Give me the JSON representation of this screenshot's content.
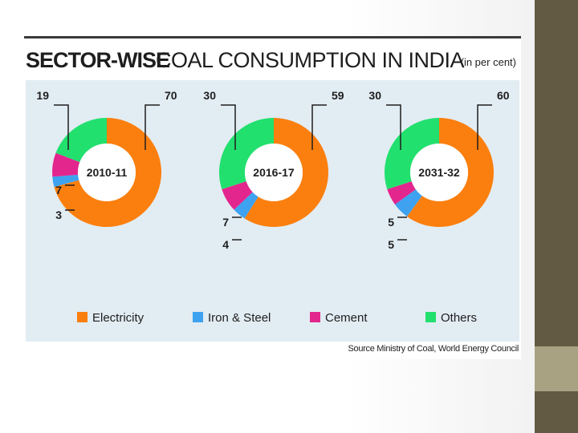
{
  "slide": {
    "colors": {
      "sidebar": "#625a43",
      "sidebar_accent": "#a8a283"
    }
  },
  "chart_data": {
    "type": "pie",
    "title_bold": "SECTOR-WISE",
    "title_rest": "COAL CONSUMPTION IN INDIA",
    "unit_note": "(in per cent)",
    "source": "Source Ministry of Coal, World Energy Council",
    "categories": [
      "Electricity",
      "Iron & Steel",
      "Cement",
      "Others"
    ],
    "colors": {
      "Electricity": "#fb7f0e",
      "Iron & Steel": "#3ea2f0",
      "Cement": "#e3268e",
      "Others": "#22e06e"
    },
    "charts": [
      {
        "year": "2010-11",
        "values": [
          70,
          3,
          7,
          19
        ],
        "value_labels": [
          "70",
          "3",
          "7",
          "19"
        ]
      },
      {
        "year": "2016-17",
        "values": [
          59,
          4,
          7,
          30
        ],
        "value_labels": [
          "59",
          "4",
          "7",
          "30"
        ]
      },
      {
        "year": "2031-32",
        "values": [
          60,
          5,
          5,
          30
        ],
        "value_labels": [
          "60",
          "5",
          "5",
          "30"
        ]
      }
    ]
  }
}
